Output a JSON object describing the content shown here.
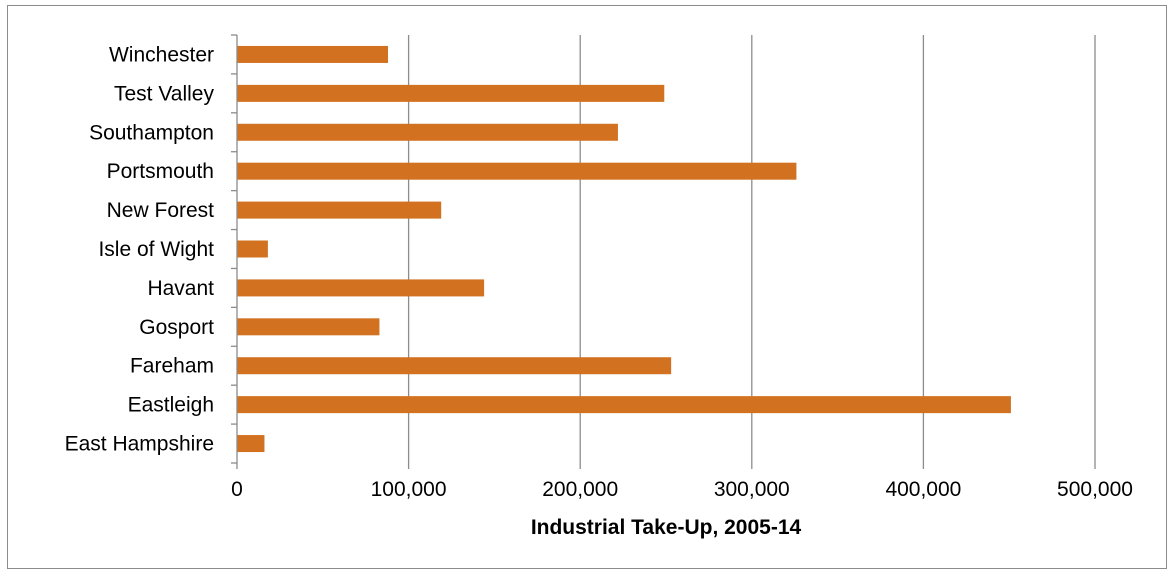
{
  "chart_data": {
    "type": "bar",
    "orientation": "horizontal",
    "categories": [
      "Winchester",
      "Test Valley",
      "Southampton",
      "Portsmouth",
      "New Forest",
      "Isle of Wight",
      "Havant",
      "Gosport",
      "Fareham",
      "Eastleigh",
      "East Hampshire"
    ],
    "values": [
      88000,
      249000,
      222000,
      326000,
      119000,
      18000,
      144000,
      83000,
      253000,
      451000,
      16000
    ],
    "xlabel": "Industrial Take-Up, 2005-14",
    "ylabel": "",
    "xlim": [
      0,
      500000
    ],
    "ticks": [
      "0",
      "100,000",
      "200,000",
      "300,000",
      "400,000",
      "500,000"
    ],
    "tick_values": [
      0,
      100000,
      200000,
      300000,
      400000,
      500000
    ],
    "grid": "vertical",
    "legend": "none",
    "colors": {
      "bar": "#D2711F",
      "grid": "#8c8c8c",
      "axis": "#8c8c8c"
    }
  }
}
